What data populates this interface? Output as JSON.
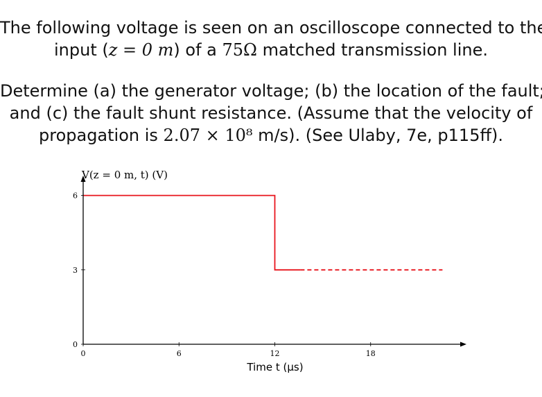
{
  "problem": {
    "p1": {
      "line1": "The following voltage is seen on an oscilloscope connected to the",
      "line2_prefix": "input (",
      "line2_math": "z = 0 m",
      "line2_mid": ") of a ",
      "line2_impedance": "75Ω",
      "line2_suffix": " matched transmission line."
    },
    "p2": {
      "line1": "Determine (a) the generator voltage; (b) the location of the fault;",
      "line2": "and (c) the fault shunt resistance. (Assume that the velocity of",
      "line3_prefix": "propagation is ",
      "line3_math": "2.07 × 10⁸",
      "line3_suffix": " m/s). (See Ulaby, 7e, p115ff)."
    }
  },
  "chart_data": {
    "type": "line",
    "ylabel": "V(z = 0 m, t) (V)",
    "xlabel": "Time t (μs)",
    "x_ticks": [
      0,
      6,
      12,
      18
    ],
    "y_ticks": [
      0,
      3,
      6
    ],
    "xlim": [
      0,
      24
    ],
    "ylim": [
      0,
      6.8
    ],
    "color": "#e8141c",
    "series": [
      {
        "style": "solid",
        "x": [
          0,
          12,
          12,
          13.6
        ],
        "y": [
          6,
          6,
          3,
          3
        ]
      },
      {
        "style": "dashed",
        "x": [
          13.6,
          22.5
        ],
        "y": [
          3,
          3
        ]
      }
    ]
  }
}
